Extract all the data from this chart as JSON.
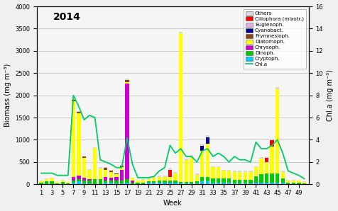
{
  "title": "2014",
  "xlabel": "Week",
  "ylabel_left": "Biomass (mg m⁻³)",
  "ylabel_right": "Chl.a (mg m⁻³)",
  "ylim_left": [
    0,
    4000
  ],
  "ylim_right": [
    0,
    16
  ],
  "weeks": [
    1,
    2,
    3,
    4,
    5,
    6,
    7,
    8,
    9,
    10,
    11,
    12,
    13,
    14,
    15,
    16,
    17,
    18,
    19,
    20,
    21,
    22,
    23,
    24,
    25,
    26,
    27,
    28,
    29,
    30,
    31,
    32,
    33,
    34,
    35,
    36,
    37,
    38,
    39,
    40,
    41,
    42,
    43,
    44,
    45,
    46,
    47,
    48,
    49,
    50
  ],
  "xtick_labels": [
    "1",
    "3",
    "5",
    "7",
    "9",
    "11",
    "13",
    "15",
    "17",
    "19",
    "21",
    "23",
    "25",
    "27",
    "29",
    "31",
    "33",
    "35",
    "37",
    "39",
    "41",
    "43",
    "45",
    "47",
    "49"
  ],
  "xtick_positions": [
    1,
    3,
    5,
    7,
    9,
    11,
    13,
    15,
    17,
    19,
    21,
    23,
    25,
    27,
    29,
    31,
    33,
    35,
    37,
    39,
    41,
    43,
    45,
    47,
    49
  ],
  "colors": {
    "Others": "#d8d8d8",
    "Ciliophora": "#ff0000",
    "Euglenoph": "#e0b0e0",
    "Cyanobact": "#00008b",
    "Prymnesioph": "#8b4513",
    "Diatomoph": "#ffff00",
    "Chrysoph": "#cc00cc",
    "Dinoph": "#00cc00",
    "Cryptoph": "#00ccff",
    "Chla": "#00cc66"
  },
  "Others": [
    20,
    20,
    20,
    10,
    20,
    10,
    20,
    20,
    20,
    10,
    20,
    20,
    20,
    20,
    20,
    20,
    20,
    10,
    10,
    10,
    20,
    20,
    30,
    30,
    50,
    30,
    20,
    30,
    50,
    30,
    50,
    50,
    30,
    20,
    20,
    20,
    20,
    20,
    20,
    20,
    20,
    30,
    30,
    30,
    50,
    30,
    20,
    20,
    10,
    10
  ],
  "Ciliophora": [
    0,
    0,
    0,
    0,
    0,
    0,
    0,
    0,
    0,
    0,
    0,
    0,
    0,
    0,
    0,
    0,
    0,
    0,
    0,
    0,
    0,
    0,
    0,
    0,
    150,
    0,
    0,
    0,
    0,
    0,
    0,
    0,
    0,
    0,
    0,
    0,
    0,
    0,
    0,
    0,
    0,
    0,
    100,
    150,
    0,
    0,
    0,
    0,
    0,
    0
  ],
  "Euglenoph": [
    0,
    0,
    0,
    0,
    0,
    0,
    0,
    0,
    0,
    0,
    0,
    0,
    0,
    0,
    0,
    0,
    0,
    0,
    0,
    0,
    0,
    0,
    0,
    0,
    0,
    0,
    0,
    0,
    0,
    0,
    0,
    0,
    0,
    0,
    0,
    0,
    0,
    0,
    0,
    0,
    0,
    0,
    0,
    0,
    0,
    0,
    0,
    0,
    0,
    0
  ],
  "Cyanobact": [
    0,
    0,
    0,
    0,
    0,
    0,
    0,
    0,
    0,
    0,
    0,
    0,
    0,
    0,
    0,
    0,
    0,
    0,
    0,
    0,
    0,
    0,
    0,
    0,
    0,
    0,
    0,
    0,
    0,
    0,
    100,
    150,
    0,
    0,
    0,
    0,
    0,
    0,
    0,
    0,
    0,
    0,
    0,
    0,
    0,
    0,
    0,
    0,
    0,
    0
  ],
  "Prymnesioph": [
    0,
    0,
    0,
    0,
    0,
    0,
    30,
    30,
    20,
    10,
    0,
    0,
    50,
    30,
    20,
    30,
    50,
    0,
    0,
    0,
    0,
    0,
    0,
    0,
    0,
    0,
    0,
    0,
    0,
    0,
    0,
    0,
    0,
    0,
    0,
    0,
    0,
    0,
    0,
    0,
    0,
    0,
    0,
    0,
    0,
    0,
    0,
    0,
    0,
    0
  ],
  "Diatomoph": [
    30,
    50,
    60,
    20,
    30,
    20,
    1700,
    1400,
    450,
    200,
    700,
    250,
    150,
    120,
    60,
    60,
    40,
    60,
    40,
    60,
    60,
    80,
    80,
    80,
    80,
    150,
    3350,
    500,
    550,
    150,
    600,
    750,
    250,
    250,
    180,
    180,
    180,
    180,
    180,
    180,
    200,
    350,
    250,
    600,
    1900,
    150,
    40,
    40,
    40,
    30
  ],
  "Chrysoph": [
    0,
    0,
    0,
    0,
    0,
    0,
    80,
    80,
    60,
    40,
    0,
    0,
    80,
    60,
    80,
    250,
    2150,
    40,
    0,
    0,
    0,
    0,
    0,
    0,
    0,
    0,
    0,
    0,
    0,
    0,
    0,
    0,
    0,
    0,
    0,
    0,
    0,
    0,
    0,
    0,
    0,
    0,
    0,
    0,
    0,
    0,
    0,
    0,
    0,
    0
  ],
  "Dinoph": [
    30,
    50,
    60,
    20,
    40,
    20,
    50,
    60,
    70,
    60,
    100,
    100,
    60,
    60,
    60,
    60,
    80,
    30,
    30,
    30,
    30,
    30,
    60,
    60,
    60,
    60,
    30,
    30,
    30,
    40,
    100,
    100,
    100,
    100,
    100,
    100,
    80,
    80,
    80,
    80,
    150,
    200,
    200,
    200,
    200,
    100,
    30,
    30,
    30,
    20
  ],
  "Cryptoph": [
    10,
    10,
    10,
    5,
    10,
    5,
    40,
    60,
    20,
    20,
    10,
    10,
    30,
    30,
    20,
    20,
    30,
    10,
    10,
    10,
    30,
    30,
    30,
    30,
    30,
    30,
    20,
    20,
    20,
    20,
    60,
    60,
    30,
    30,
    30,
    30,
    20,
    20,
    20,
    20,
    30,
    30,
    40,
    40,
    40,
    30,
    10,
    10,
    10,
    5
  ],
  "chla": [
    1.0,
    1.0,
    1.0,
    0.8,
    0.8,
    0.8,
    8.0,
    7.0,
    5.8,
    6.2,
    6.0,
    2.2,
    2.0,
    1.8,
    1.5,
    1.5,
    4.2,
    1.8,
    0.6,
    0.6,
    0.6,
    0.7,
    1.2,
    1.5,
    3.5,
    2.8,
    3.2,
    2.5,
    2.5,
    2.0,
    3.0,
    3.2,
    2.5,
    2.8,
    2.5,
    2.0,
    2.5,
    2.2,
    2.2,
    2.0,
    3.8,
    3.2,
    3.2,
    3.5,
    4.0,
    2.8,
    1.2,
    1.0,
    0.8,
    0.5
  ]
}
